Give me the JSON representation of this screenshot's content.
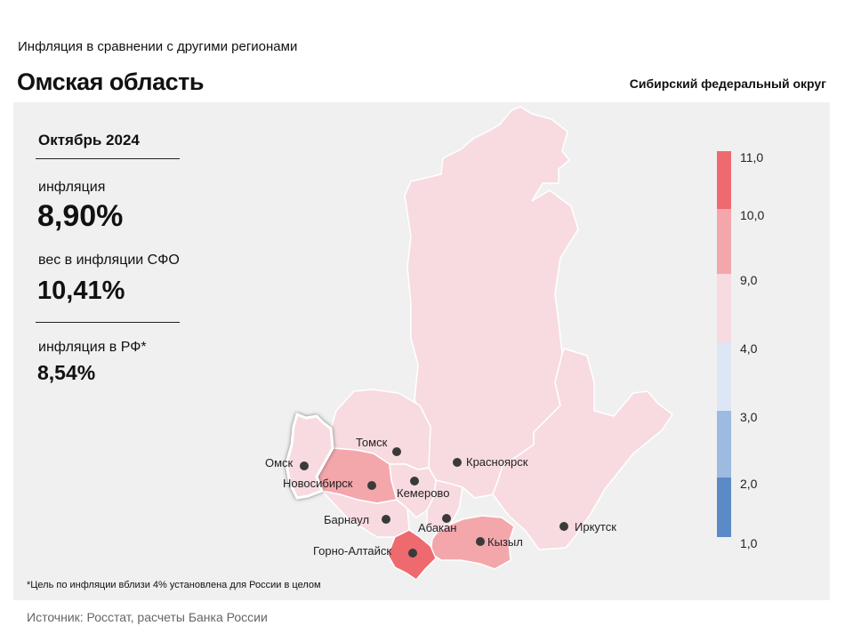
{
  "header": {
    "subtitle": "Инфляция  в сравнении  с другими  регионами",
    "title": "Омская область",
    "district": "Сибирский федеральный округ"
  },
  "stats": {
    "period": "Октябрь 2024",
    "inflation_label": "инфляция",
    "inflation_value": "8,90%",
    "weight_label": "вес в инфляции  СФО",
    "weight_value": "10,41%",
    "rf_label": "инфляция  в РФ*",
    "rf_value": "8,54%"
  },
  "footnote": "*Цель по инфляции вблизи 4% установлена для России в целом",
  "source": "Источник: Росстат, расчеты Банка России",
  "colors": {
    "bin_1_2": "#5b8bc7",
    "bin_2_3": "#9dbbe0",
    "bin_3_4": "#dde6f5",
    "bin_4_9": "#f7dbe0",
    "bin_9_10": "#f4a7ab",
    "bin_10_11": "#ee6a6f",
    "highlight_border": "#ffffff"
  },
  "chart_data": {
    "type": "choropleth",
    "highlighted_region": "Омск",
    "legend": {
      "ticks": [
        "11,0",
        "10,0",
        "9,0",
        "4,0",
        "3,0",
        "2,0",
        "1,0"
      ],
      "bins": [
        {
          "from": 1,
          "to": 2,
          "color": "#5b8bc7"
        },
        {
          "from": 2,
          "to": 3,
          "color": "#9dbbe0"
        },
        {
          "from": 3,
          "to": 4,
          "color": "#dde6f5"
        },
        {
          "from": 4,
          "to": 9,
          "color": "#f7dbe0"
        },
        {
          "from": 9,
          "to": 10,
          "color": "#f4a7ab"
        },
        {
          "from": 10,
          "to": 11,
          "color": "#ee6a6f"
        }
      ]
    },
    "regions": [
      {
        "city": "Красноярск",
        "bin": "4-9"
      },
      {
        "city": "Иркутск",
        "bin": "4-9"
      },
      {
        "city": "Томск",
        "bin": "4-9"
      },
      {
        "city": "Омск",
        "bin": "4-9"
      },
      {
        "city": "Новосибирск",
        "bin": "9-10"
      },
      {
        "city": "Кемерово",
        "bin": "4-9"
      },
      {
        "city": "Барнаул",
        "bin": "4-9"
      },
      {
        "city": "Абакан",
        "bin": "4-9"
      },
      {
        "city": "Кызыл",
        "bin": "9-10"
      },
      {
        "city": "Горно-Алтайск",
        "bin": "10-11"
      }
    ]
  }
}
